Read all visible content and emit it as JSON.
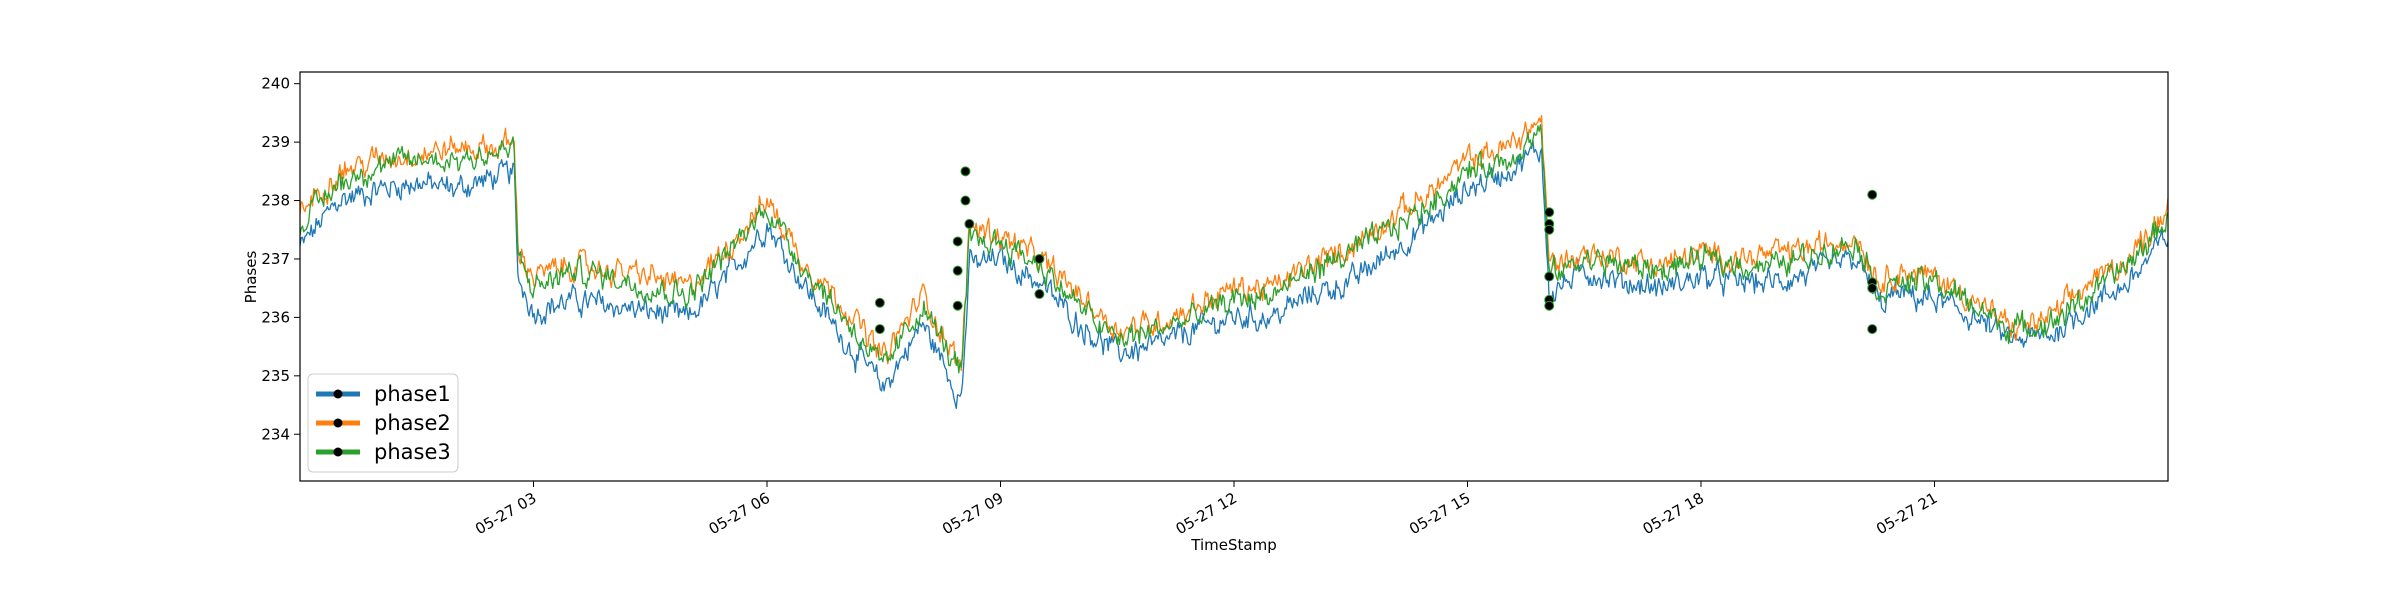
{
  "chart_data": {
    "type": "line",
    "title": "",
    "xlabel": "TimeStamp",
    "ylabel": "Phases",
    "xlim": [
      "05-27 00:00",
      "05-27 24:00"
    ],
    "ylim": [
      233.2,
      240.2
    ],
    "x_ticks": [
      {
        "label": "05-27 03",
        "hour": 3
      },
      {
        "label": "05-27 06",
        "hour": 6
      },
      {
        "label": "05-27 09",
        "hour": 9
      },
      {
        "label": "05-27 12",
        "hour": 12
      },
      {
        "label": "05-27 15",
        "hour": 15
      },
      {
        "label": "05-27 18",
        "hour": 18
      },
      {
        "label": "05-27 21",
        "hour": 21
      }
    ],
    "y_ticks": [
      234,
      235,
      236,
      237,
      238,
      239,
      240
    ],
    "legend": {
      "placement": "lower-left"
    },
    "x_hours": [
      0,
      0.5,
      1,
      1.5,
      2,
      2.5,
      2.75,
      2.8,
      3,
      3.5,
      4,
      4.5,
      5,
      5.5,
      6,
      6.5,
      7,
      7.5,
      8,
      8.5,
      8.6,
      9,
      9.5,
      10,
      10.5,
      11,
      11.5,
      12,
      12.5,
      13,
      13.5,
      14,
      14.5,
      15,
      15.5,
      15.95,
      16.05,
      16.5,
      17,
      17.5,
      18,
      18.5,
      19,
      19.5,
      20,
      20.3,
      20.5,
      21,
      21.5,
      22,
      22.5,
      23,
      23.5,
      24
    ],
    "series": [
      {
        "name": "phase1",
        "color": "#1f77b4",
        "values": [
          237.2,
          238.0,
          238.2,
          238.3,
          238.2,
          238.4,
          238.5,
          236.7,
          236.1,
          236.3,
          236.2,
          236.1,
          236.0,
          236.7,
          237.6,
          236.5,
          235.6,
          234.8,
          235.9,
          234.6,
          236.9,
          237.0,
          236.6,
          235.9,
          235.4,
          235.5,
          235.8,
          236.0,
          236.0,
          236.4,
          236.6,
          237.1,
          237.6,
          238.2,
          238.5,
          238.9,
          236.4,
          236.8,
          236.6,
          236.5,
          236.7,
          236.6,
          236.6,
          236.8,
          237.0,
          236.2,
          236.4,
          236.3,
          236.0,
          235.6,
          235.7,
          236.2,
          236.6,
          237.4
        ]
      },
      {
        "name": "phase2",
        "color": "#ff7f0e",
        "values": [
          237.8,
          238.5,
          238.7,
          238.8,
          238.9,
          238.9,
          239.0,
          237.2,
          236.7,
          236.9,
          236.8,
          236.7,
          236.5,
          237.2,
          238.0,
          236.9,
          236.2,
          235.3,
          236.4,
          235.1,
          237.6,
          237.4,
          237.0,
          236.4,
          235.8,
          235.9,
          236.2,
          236.5,
          236.5,
          236.9,
          237.2,
          237.7,
          238.1,
          238.7,
          238.9,
          239.4,
          236.9,
          237.1,
          237.0,
          236.9,
          237.1,
          237.0,
          237.1,
          237.2,
          237.4,
          236.6,
          236.8,
          236.7,
          236.3,
          235.8,
          236.0,
          236.6,
          237.0,
          237.9
        ]
      },
      {
        "name": "phase3",
        "color": "#2ca02c",
        "values": [
          237.6,
          238.3,
          238.6,
          238.7,
          238.7,
          238.8,
          238.9,
          237.0,
          236.5,
          236.8,
          236.7,
          236.5,
          236.4,
          237.1,
          237.9,
          236.8,
          236.0,
          235.1,
          236.2,
          235.0,
          237.3,
          237.3,
          236.9,
          236.2,
          235.6,
          235.8,
          236.0,
          236.3,
          236.4,
          236.8,
          237.1,
          237.5,
          237.9,
          238.5,
          238.7,
          239.2,
          236.7,
          237.0,
          236.9,
          236.8,
          237.0,
          236.9,
          236.9,
          237.1,
          237.3,
          236.4,
          236.6,
          236.6,
          236.2,
          235.8,
          235.9,
          236.4,
          236.9,
          237.7
        ]
      }
    ],
    "markers": [
      {
        "hour": 7.45,
        "value": 236.25
      },
      {
        "hour": 7.45,
        "value": 235.8
      },
      {
        "hour": 8.45,
        "value": 237.3
      },
      {
        "hour": 8.45,
        "value": 236.8
      },
      {
        "hour": 8.45,
        "value": 236.2
      },
      {
        "hour": 8.55,
        "value": 238.5
      },
      {
        "hour": 8.55,
        "value": 238.0
      },
      {
        "hour": 8.6,
        "value": 237.6
      },
      {
        "hour": 9.5,
        "value": 237.0
      },
      {
        "hour": 9.5,
        "value": 236.4
      },
      {
        "hour": 16.05,
        "value": 237.8
      },
      {
        "hour": 16.05,
        "value": 237.6
      },
      {
        "hour": 16.05,
        "value": 237.5
      },
      {
        "hour": 16.05,
        "value": 236.7
      },
      {
        "hour": 16.05,
        "value": 236.3
      },
      {
        "hour": 16.05,
        "value": 236.2
      },
      {
        "hour": 20.2,
        "value": 238.1
      },
      {
        "hour": 20.2,
        "value": 236.6
      },
      {
        "hour": 20.2,
        "value": 236.5
      },
      {
        "hour": 20.2,
        "value": 235.8
      }
    ]
  }
}
